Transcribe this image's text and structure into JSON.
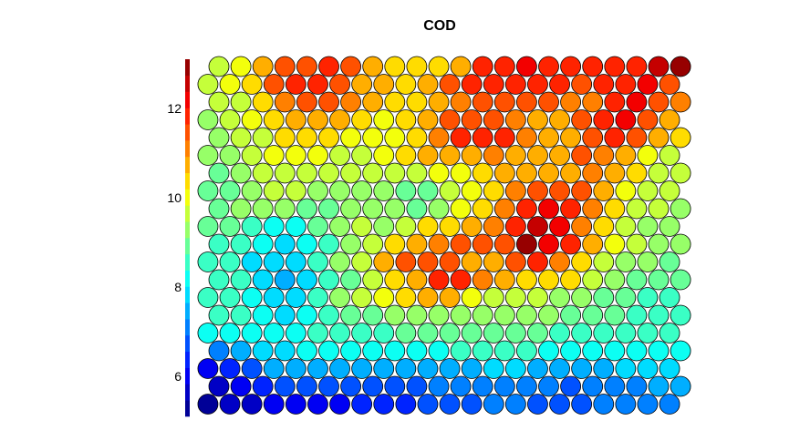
{
  "chart_data": {
    "type": "heatmap",
    "title": "COD",
    "xlabel": "",
    "ylabel": "",
    "grid_shape": "hexagonal",
    "rows": 20,
    "cols": 22,
    "colorbar": {
      "range": [
        5.1,
        13.1
      ],
      "ticks": [
        6,
        8,
        10,
        12
      ],
      "tick_labels": [
        "6",
        "8",
        "10",
        "12"
      ],
      "levels": 22,
      "colormap": "jet",
      "placement": "left"
    },
    "values": [
      [
        9.8,
        10.0,
        10.8,
        11.3,
        11.5,
        11.7,
        11.4,
        10.9,
        10.5,
        10.2,
        10.4,
        10.9,
        11.8,
        12.0,
        12.1,
        12.0,
        11.9,
        11.7,
        11.8,
        11.8,
        12.6,
        12.9
      ],
      [
        9.6,
        9.9,
        10.5,
        11.4,
        11.8,
        11.8,
        11.4,
        10.9,
        10.6,
        10.4,
        10.7,
        11.3,
        11.8,
        11.9,
        12.0,
        11.9,
        11.8,
        11.6,
        11.7,
        12.0,
        12.2,
        11.4
      ],
      [
        9.5,
        9.8,
        10.3,
        11.0,
        11.4,
        11.3,
        11.0,
        10.7,
        10.3,
        10.4,
        10.7,
        11.1,
        11.4,
        11.5,
        11.6,
        11.4,
        11.2,
        11.2,
        12.0,
        12.1,
        11.6,
        11.1
      ],
      [
        9.4,
        9.6,
        10.0,
        10.5,
        10.8,
        10.8,
        10.6,
        10.3,
        10.1,
        10.4,
        10.8,
        11.4,
        11.6,
        11.3,
        11.0,
        10.9,
        10.9,
        11.3,
        12.0,
        12.1,
        11.3,
        10.8
      ],
      [
        9.4,
        9.5,
        9.8,
        10.2,
        10.3,
        10.3,
        10.1,
        10.0,
        10.0,
        10.5,
        11.0,
        11.7,
        11.9,
        11.7,
        11.2,
        10.8,
        10.8,
        11.5,
        11.9,
        11.4,
        10.8,
        10.3
      ],
      [
        9.2,
        9.4,
        9.7,
        10.0,
        10.1,
        10.0,
        9.8,
        9.8,
        9.9,
        10.2,
        10.6,
        10.8,
        10.9,
        11.0,
        10.7,
        10.6,
        10.9,
        11.3,
        11.0,
        10.6,
        10.1,
        9.8
      ],
      [
        9.0,
        9.2,
        9.6,
        9.8,
        9.8,
        9.7,
        9.5,
        9.6,
        9.7,
        9.8,
        9.9,
        10.0,
        10.4,
        10.6,
        10.8,
        10.8,
        10.9,
        11.0,
        10.6,
        10.2,
        9.8,
        9.6
      ],
      [
        8.8,
        9.0,
        9.3,
        9.5,
        9.5,
        9.4,
        9.2,
        9.3,
        9.2,
        9.0,
        8.9,
        9.5,
        10.0,
        10.5,
        11.0,
        11.5,
        11.6,
        11.3,
        10.7,
        10.1,
        9.7,
        9.5
      ],
      [
        8.8,
        9.1,
        9.2,
        9.2,
        9.0,
        8.9,
        9.3,
        9.4,
        9.1,
        9.0,
        9.3,
        9.9,
        10.5,
        11.0,
        11.8,
        12.1,
        11.9,
        11.1,
        10.4,
        9.8,
        9.5,
        9.3
      ],
      [
        8.9,
        8.9,
        8.6,
        8.3,
        8.3,
        8.8,
        9.2,
        9.5,
        9.3,
        9.7,
        10.2,
        10.4,
        10.7,
        11.1,
        12.0,
        12.4,
        12.2,
        11.0,
        10.2,
        9.7,
        9.4,
        9.2
      ],
      [
        8.7,
        8.6,
        8.2,
        8.0,
        8.2,
        8.6,
        9.1,
        9.5,
        10.3,
        10.9,
        11.0,
        11.3,
        11.5,
        11.3,
        12.8,
        12.3,
        11.9,
        10.6,
        10.0,
        9.5,
        9.2,
        9.1
      ],
      [
        8.6,
        8.5,
        8.0,
        7.7,
        8.0,
        8.5,
        9.2,
        9.8,
        10.6,
        11.3,
        11.6,
        11.4,
        10.8,
        10.9,
        11.5,
        11.7,
        11.1,
        10.3,
        9.7,
        9.4,
        9.1,
        9.0
      ],
      [
        8.6,
        8.4,
        8.0,
        7.6,
        7.8,
        8.4,
        9.0,
        9.7,
        10.3,
        10.9,
        11.8,
        12.0,
        11.2,
        10.6,
        10.2,
        10.3,
        10.2,
        9.6,
        9.2,
        9.0,
        8.9,
        8.8
      ],
      [
        8.5,
        8.4,
        8.1,
        7.7,
        7.8,
        8.4,
        9.1,
        9.5,
        10.0,
        10.3,
        10.8,
        10.9,
        10.1,
        9.7,
        9.6,
        9.5,
        9.4,
        9.2,
        9.0,
        8.8,
        8.7,
        8.6
      ],
      [
        8.4,
        8.4,
        8.2,
        8.0,
        8.1,
        8.5,
        8.8,
        9.0,
        9.1,
        9.2,
        9.4,
        9.3,
        9.1,
        9.1,
        9.1,
        9.1,
        9.0,
        8.9,
        8.8,
        8.6,
        8.5,
        8.5
      ],
      [
        8.2,
        8.3,
        8.3,
        8.2,
        8.3,
        8.5,
        8.6,
        8.7,
        8.7,
        8.8,
        8.8,
        8.8,
        8.8,
        8.8,
        8.8,
        8.8,
        8.7,
        8.6,
        8.6,
        8.5,
        8.4,
        8.4
      ],
      [
        7.0,
        7.3,
        7.7,
        8.0,
        8.2,
        8.3,
        8.3,
        8.2,
        8.2,
        8.2,
        8.3,
        8.4,
        8.4,
        8.4,
        8.4,
        8.3,
        8.3,
        8.2,
        8.2,
        8.3,
        8.3,
        8.3
      ],
      [
        6.1,
        6.3,
        6.9,
        7.3,
        7.4,
        7.4,
        7.3,
        7.3,
        7.4,
        7.4,
        7.5,
        7.6,
        7.6,
        7.7,
        7.7,
        7.6,
        7.5,
        7.5,
        7.6,
        7.7,
        7.8,
        7.8
      ],
      [
        5.8,
        6.0,
        6.4,
        6.6,
        6.7,
        6.7,
        6.7,
        6.7,
        6.9,
        6.9,
        7.0,
        7.1,
        7.1,
        7.2,
        7.2,
        7.0,
        6.9,
        7.0,
        7.1,
        7.2,
        7.3,
        7.3
      ],
      [
        5.4,
        5.5,
        5.7,
        6.0,
        6.1,
        6.1,
        6.1,
        6.2,
        6.4,
        6.5,
        6.6,
        6.8,
        6.9,
        7.0,
        7.0,
        6.8,
        6.7,
        6.9,
        7.0,
        7.1,
        7.2,
        7.2
      ]
    ]
  }
}
